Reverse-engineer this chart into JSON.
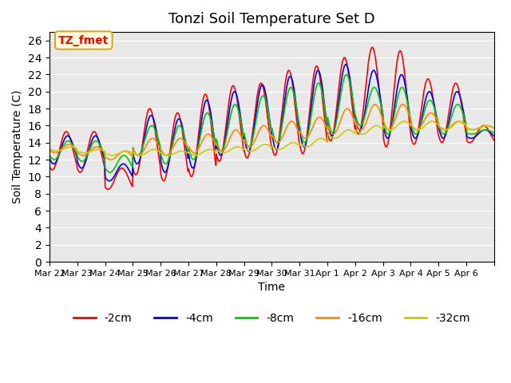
{
  "title": "Tonzi Soil Temperature Set D",
  "xlabel": "Time",
  "ylabel": "Soil Temperature (C)",
  "annotation": "TZ_fmet",
  "ylim": [
    0,
    27
  ],
  "yticks": [
    0,
    2,
    4,
    6,
    8,
    10,
    12,
    14,
    16,
    18,
    20,
    22,
    24,
    26
  ],
  "series_colors": [
    "#ff0000",
    "#0000ff",
    "#00cc00",
    "#ff8800",
    "#cccc00"
  ],
  "series_labels": [
    "-2cm",
    "-4cm",
    "-8cm",
    "-16cm",
    "-32cm"
  ],
  "background_color": "#e8e8e8",
  "x_tick_labels": [
    "Mar 22",
    "Mar 23",
    "Mar 24",
    "Mar 25",
    "Mar 26",
    "Mar 27",
    "Mar 28",
    "Mar 29",
    "Mar 30",
    "Mar 31",
    "Apr 1",
    "Apr 2",
    "Apr 3",
    "Apr 4",
    "Apr 5",
    "Apr 6",
    ""
  ],
  "title_fontsize": 13,
  "axis_fontsize": 10,
  "legend_fontsize": 10
}
